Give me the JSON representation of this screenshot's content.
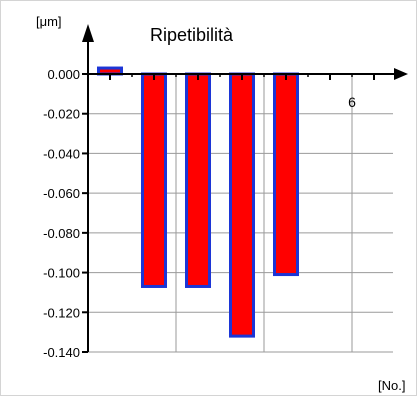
{
  "chart_data": {
    "type": "bar",
    "title": "Ripetibilità",
    "ylabel": "[μm]",
    "xlabel": "[No.]",
    "x_visible_tick_label": "6",
    "ylim": [
      -0.14,
      0.01
    ],
    "xlim": [
      0.5,
      7.0
    ],
    "yticks": [
      "0.000",
      "-0.020",
      "-0.040",
      "-0.060",
      "-0.080",
      "-0.100",
      "-0.120",
      "-0.140"
    ],
    "ytick_values": [
      0.0,
      -0.02,
      -0.04,
      -0.06,
      -0.08,
      -0.1,
      -0.12,
      -0.14
    ],
    "x": [
      1,
      2,
      3,
      4,
      5
    ],
    "values": [
      0.003,
      -0.107,
      -0.107,
      -0.132,
      -0.101
    ],
    "bar_fill": "#ff0000",
    "bar_edge": "#1c35d6",
    "grid": true
  }
}
